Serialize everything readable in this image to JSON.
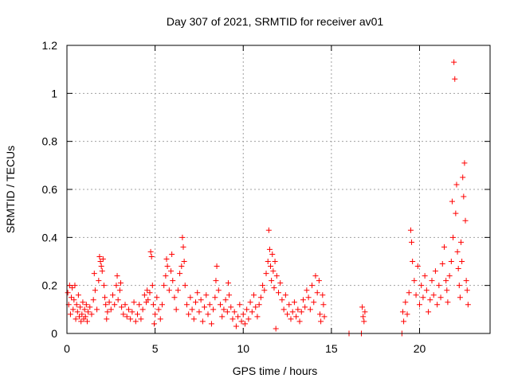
{
  "chart_data": {
    "type": "scatter",
    "title": "Day 307 of 2021, SRMTID for receiver av01",
    "xlabel": "GPS time / hours",
    "ylabel": "SRMTID / TECUs",
    "xlim": [
      0,
      24
    ],
    "ylim": [
      0,
      1.2
    ],
    "xticks": [
      0,
      5,
      10,
      15,
      20
    ],
    "xtick_labels": [
      "0",
      "5",
      "10",
      "15",
      "20"
    ],
    "yticks": [
      0,
      0.2,
      0.4,
      0.6,
      0.8,
      1.0,
      1.2
    ],
    "ytick_labels": [
      "0",
      "0.2",
      "0.4",
      "0.6",
      "0.8",
      "1",
      "1.2"
    ],
    "grid": true,
    "marker": "plus",
    "series": [
      {
        "name": "SRMTID",
        "color": "#ff0000",
        "points": [
          [
            0.05,
            0.17
          ],
          [
            0.1,
            0.12
          ],
          [
            0.15,
            0.2
          ],
          [
            0.2,
            0.08
          ],
          [
            0.25,
            0.15
          ],
          [
            0.3,
            0.19
          ],
          [
            0.35,
            0.1
          ],
          [
            0.4,
            0.14
          ],
          [
            0.45,
            0.2
          ],
          [
            0.5,
            0.06
          ],
          [
            0.55,
            0.12
          ],
          [
            0.6,
            0.09
          ],
          [
            0.65,
            0.16
          ],
          [
            0.7,
            0.07
          ],
          [
            0.75,
            0.11
          ],
          [
            0.8,
            0.05
          ],
          [
            0.85,
            0.08
          ],
          [
            0.9,
            0.13
          ],
          [
            0.95,
            0.06
          ],
          [
            1.0,
            0.1
          ],
          [
            1.05,
            0.07
          ],
          [
            1.1,
            0.12
          ],
          [
            1.15,
            0.05
          ],
          [
            1.2,
            0.09
          ],
          [
            1.3,
            0.11
          ],
          [
            1.4,
            0.08
          ],
          [
            1.5,
            0.14
          ],
          [
            1.55,
            0.25
          ],
          [
            1.6,
            0.18
          ],
          [
            1.7,
            0.1
          ],
          [
            1.8,
            0.22
          ],
          [
            1.85,
            0.32
          ],
          [
            1.9,
            0.3
          ],
          [
            1.95,
            0.28
          ],
          [
            2.0,
            0.26
          ],
          [
            2.05,
            0.31
          ],
          [
            2.1,
            0.2
          ],
          [
            2.15,
            0.15
          ],
          [
            2.2,
            0.12
          ],
          [
            2.25,
            0.06
          ],
          [
            2.3,
            0.09
          ],
          [
            2.4,
            0.13
          ],
          [
            2.5,
            0.1
          ],
          [
            2.6,
            0.16
          ],
          [
            2.7,
            0.12
          ],
          [
            2.8,
            0.2
          ],
          [
            2.85,
            0.24
          ],
          [
            2.9,
            0.14
          ],
          [
            3.0,
            0.18
          ],
          [
            3.05,
            0.21
          ],
          [
            3.1,
            0.11
          ],
          [
            3.2,
            0.08
          ],
          [
            3.3,
            0.12
          ],
          [
            3.4,
            0.07
          ],
          [
            3.5,
            0.1
          ],
          [
            3.6,
            0.06
          ],
          [
            3.7,
            0.09
          ],
          [
            3.8,
            0.13
          ],
          [
            3.9,
            0.05
          ],
          [
            4.0,
            0.08
          ],
          [
            4.1,
            0.12
          ],
          [
            4.2,
            0.06
          ],
          [
            4.3,
            0.1
          ],
          [
            4.4,
            0.16
          ],
          [
            4.5,
            0.13
          ],
          [
            4.55,
            0.18
          ],
          [
            4.6,
            0.14
          ],
          [
            4.7,
            0.17
          ],
          [
            4.75,
            0.34
          ],
          [
            4.8,
            0.32
          ],
          [
            4.85,
            0.2
          ],
          [
            4.9,
            0.12
          ],
          [
            4.95,
            0.04
          ],
          [
            5.0,
            0.08
          ],
          [
            5.1,
            0.15
          ],
          [
            5.2,
            0.1
          ],
          [
            5.3,
            0.06
          ],
          [
            5.4,
            0.12
          ],
          [
            5.5,
            0.2
          ],
          [
            5.6,
            0.24
          ],
          [
            5.65,
            0.31
          ],
          [
            5.7,
            0.28
          ],
          [
            5.8,
            0.18
          ],
          [
            5.9,
            0.26
          ],
          [
            5.95,
            0.33
          ],
          [
            6.0,
            0.22
          ],
          [
            6.1,
            0.15
          ],
          [
            6.2,
            0.1
          ],
          [
            6.3,
            0.18
          ],
          [
            6.4,
            0.25
          ],
          [
            6.5,
            0.28
          ],
          [
            6.55,
            0.4
          ],
          [
            6.6,
            0.36
          ],
          [
            6.65,
            0.3
          ],
          [
            6.7,
            0.2
          ],
          [
            6.8,
            0.12
          ],
          [
            6.9,
            0.08
          ],
          [
            7.0,
            0.15
          ],
          [
            7.1,
            0.1
          ],
          [
            7.2,
            0.06
          ],
          [
            7.3,
            0.13
          ],
          [
            7.4,
            0.17
          ],
          [
            7.5,
            0.09
          ],
          [
            7.6,
            0.14
          ],
          [
            7.7,
            0.05
          ],
          [
            7.8,
            0.11
          ],
          [
            7.9,
            0.16
          ],
          [
            8.0,
            0.08
          ],
          [
            8.1,
            0.12
          ],
          [
            8.2,
            0.04
          ],
          [
            8.3,
            0.1
          ],
          [
            8.4,
            0.15
          ],
          [
            8.45,
            0.22
          ],
          [
            8.5,
            0.28
          ],
          [
            8.6,
            0.18
          ],
          [
            8.7,
            0.12
          ],
          [
            8.8,
            0.07
          ],
          [
            8.9,
            0.1
          ],
          [
            9.0,
            0.14
          ],
          [
            9.1,
            0.09
          ],
          [
            9.15,
            0.21
          ],
          [
            9.2,
            0.16
          ],
          [
            9.3,
            0.11
          ],
          [
            9.4,
            0.06
          ],
          [
            9.5,
            0.09
          ],
          [
            9.6,
            0.03
          ],
          [
            9.7,
            0.07
          ],
          [
            9.8,
            0.12
          ],
          [
            9.9,
            0.05
          ],
          [
            10.0,
            0.08
          ],
          [
            10.1,
            0.04
          ],
          [
            10.2,
            0.1
          ],
          [
            10.3,
            0.06
          ],
          [
            10.4,
            0.13
          ],
          [
            10.5,
            0.09
          ],
          [
            10.6,
            0.16
          ],
          [
            10.7,
            0.11
          ],
          [
            10.8,
            0.07
          ],
          [
            10.9,
            0.12
          ],
          [
            11.0,
            0.15
          ],
          [
            11.1,
            0.2
          ],
          [
            11.2,
            0.18
          ],
          [
            11.3,
            0.25
          ],
          [
            11.4,
            0.3
          ],
          [
            11.45,
            0.43
          ],
          [
            11.5,
            0.35
          ],
          [
            11.55,
            0.28
          ],
          [
            11.6,
            0.22
          ],
          [
            11.65,
            0.33
          ],
          [
            11.7,
            0.26
          ],
          [
            11.75,
            0.19
          ],
          [
            11.8,
            0.3
          ],
          [
            11.85,
            0.02
          ],
          [
            11.9,
            0.24
          ],
          [
            12.0,
            0.17
          ],
          [
            12.1,
            0.21
          ],
          [
            12.2,
            0.14
          ],
          [
            12.3,
            0.1
          ],
          [
            12.4,
            0.16
          ],
          [
            12.5,
            0.08
          ],
          [
            12.6,
            0.12
          ],
          [
            12.7,
            0.06
          ],
          [
            12.8,
            0.09
          ],
          [
            12.9,
            0.13
          ],
          [
            13.0,
            0.07
          ],
          [
            13.1,
            0.1
          ],
          [
            13.2,
            0.05
          ],
          [
            13.3,
            0.09
          ],
          [
            13.4,
            0.14
          ],
          [
            13.5,
            0.11
          ],
          [
            13.6,
            0.18
          ],
          [
            13.7,
            0.15
          ],
          [
            13.8,
            0.1
          ],
          [
            13.9,
            0.2
          ],
          [
            14.0,
            0.13
          ],
          [
            14.1,
            0.24
          ],
          [
            14.2,
            0.17
          ],
          [
            14.3,
            0.22
          ],
          [
            14.35,
            0.08
          ],
          [
            14.4,
            0.05
          ],
          [
            14.5,
            0.16
          ],
          [
            14.55,
            0.12
          ],
          [
            14.6,
            0.07
          ],
          [
            16.0,
            0.0
          ],
          [
            16.7,
            0.0
          ],
          [
            16.75,
            0.11
          ],
          [
            16.8,
            0.07
          ],
          [
            16.85,
            0.05
          ],
          [
            16.9,
            0.09
          ],
          [
            19.0,
            0.0
          ],
          [
            19.05,
            0.09
          ],
          [
            19.1,
            0.05
          ],
          [
            19.2,
            0.13
          ],
          [
            19.3,
            0.08
          ],
          [
            19.4,
            0.17
          ],
          [
            19.5,
            0.43
          ],
          [
            19.55,
            0.38
          ],
          [
            19.6,
            0.3
          ],
          [
            19.7,
            0.22
          ],
          [
            19.8,
            0.16
          ],
          [
            19.9,
            0.28
          ],
          [
            20.0,
            0.12
          ],
          [
            20.1,
            0.2
          ],
          [
            20.2,
            0.15
          ],
          [
            20.3,
            0.24
          ],
          [
            20.4,
            0.18
          ],
          [
            20.5,
            0.09
          ],
          [
            20.6,
            0.14
          ],
          [
            20.7,
            0.22
          ],
          [
            20.8,
            0.16
          ],
          [
            20.9,
            0.26
          ],
          [
            21.0,
            0.12
          ],
          [
            21.1,
            0.2
          ],
          [
            21.2,
            0.15
          ],
          [
            21.3,
            0.29
          ],
          [
            21.4,
            0.36
          ],
          [
            21.5,
            0.22
          ],
          [
            21.55,
            0.18
          ],
          [
            21.6,
            0.13
          ],
          [
            21.7,
            0.24
          ],
          [
            21.8,
            0.3
          ],
          [
            21.85,
            0.55
          ],
          [
            21.9,
            0.4
          ],
          [
            21.95,
            1.13
          ],
          [
            22.0,
            1.06
          ],
          [
            22.05,
            0.5
          ],
          [
            22.1,
            0.62
          ],
          [
            22.15,
            0.34
          ],
          [
            22.2,
            0.27
          ],
          [
            22.25,
            0.2
          ],
          [
            22.3,
            0.15
          ],
          [
            22.35,
            0.38
          ],
          [
            22.4,
            0.3
          ],
          [
            22.45,
            0.65
          ],
          [
            22.5,
            0.57
          ],
          [
            22.55,
            0.71
          ],
          [
            22.6,
            0.47
          ],
          [
            22.65,
            0.22
          ],
          [
            22.7,
            0.18
          ],
          [
            22.75,
            0.12
          ]
        ]
      }
    ]
  }
}
